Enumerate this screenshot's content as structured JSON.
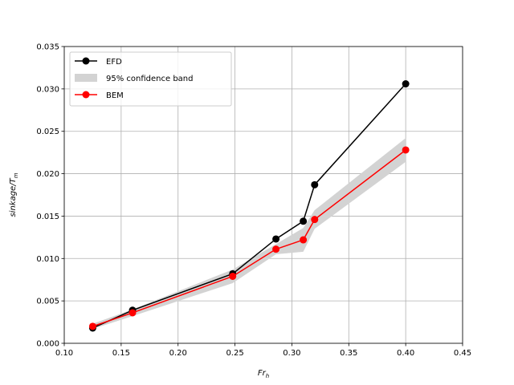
{
  "chart_data": {
    "type": "line",
    "title": "",
    "xlabel": "Fr",
    "xlabel_sub": "h",
    "ylabel": "sinkage/T",
    "ylabel_sub": "m",
    "xlim": [
      0.1,
      0.45
    ],
    "ylim": [
      0.0,
      0.035
    ],
    "xticks": [
      "0.10",
      "0.15",
      "0.20",
      "0.25",
      "0.30",
      "0.35",
      "0.40",
      "0.45"
    ],
    "yticks": [
      "0.000",
      "0.005",
      "0.010",
      "0.015",
      "0.020",
      "0.025",
      "0.030",
      "0.035"
    ],
    "grid": true,
    "legend_position": "top-left",
    "series": [
      {
        "name": "EFD",
        "color": "#000000",
        "marker": "circle",
        "x": [
          0.125,
          0.16,
          0.248,
          0.286,
          0.31,
          0.32,
          0.4
        ],
        "y": [
          0.0018,
          0.0039,
          0.0082,
          0.0123,
          0.0144,
          0.0187,
          0.0306
        ]
      },
      {
        "name": "BEM",
        "color": "#ff0000",
        "marker": "circle",
        "x": [
          0.125,
          0.16,
          0.248,
          0.286,
          0.31,
          0.32,
          0.4
        ],
        "y": [
          0.002,
          0.0036,
          0.0079,
          0.0111,
          0.0122,
          0.0146,
          0.0228
        ]
      }
    ],
    "band": {
      "name": "95% confidence band",
      "color": "#d3d3d3",
      "x": [
        0.125,
        0.16,
        0.248,
        0.286,
        0.31,
        0.32,
        0.4
      ],
      "lower": [
        0.0017,
        0.0032,
        0.0071,
        0.0105,
        0.0108,
        0.0135,
        0.0214
      ],
      "upper": [
        0.0023,
        0.004,
        0.0087,
        0.0117,
        0.0136,
        0.0157,
        0.0242
      ]
    }
  }
}
